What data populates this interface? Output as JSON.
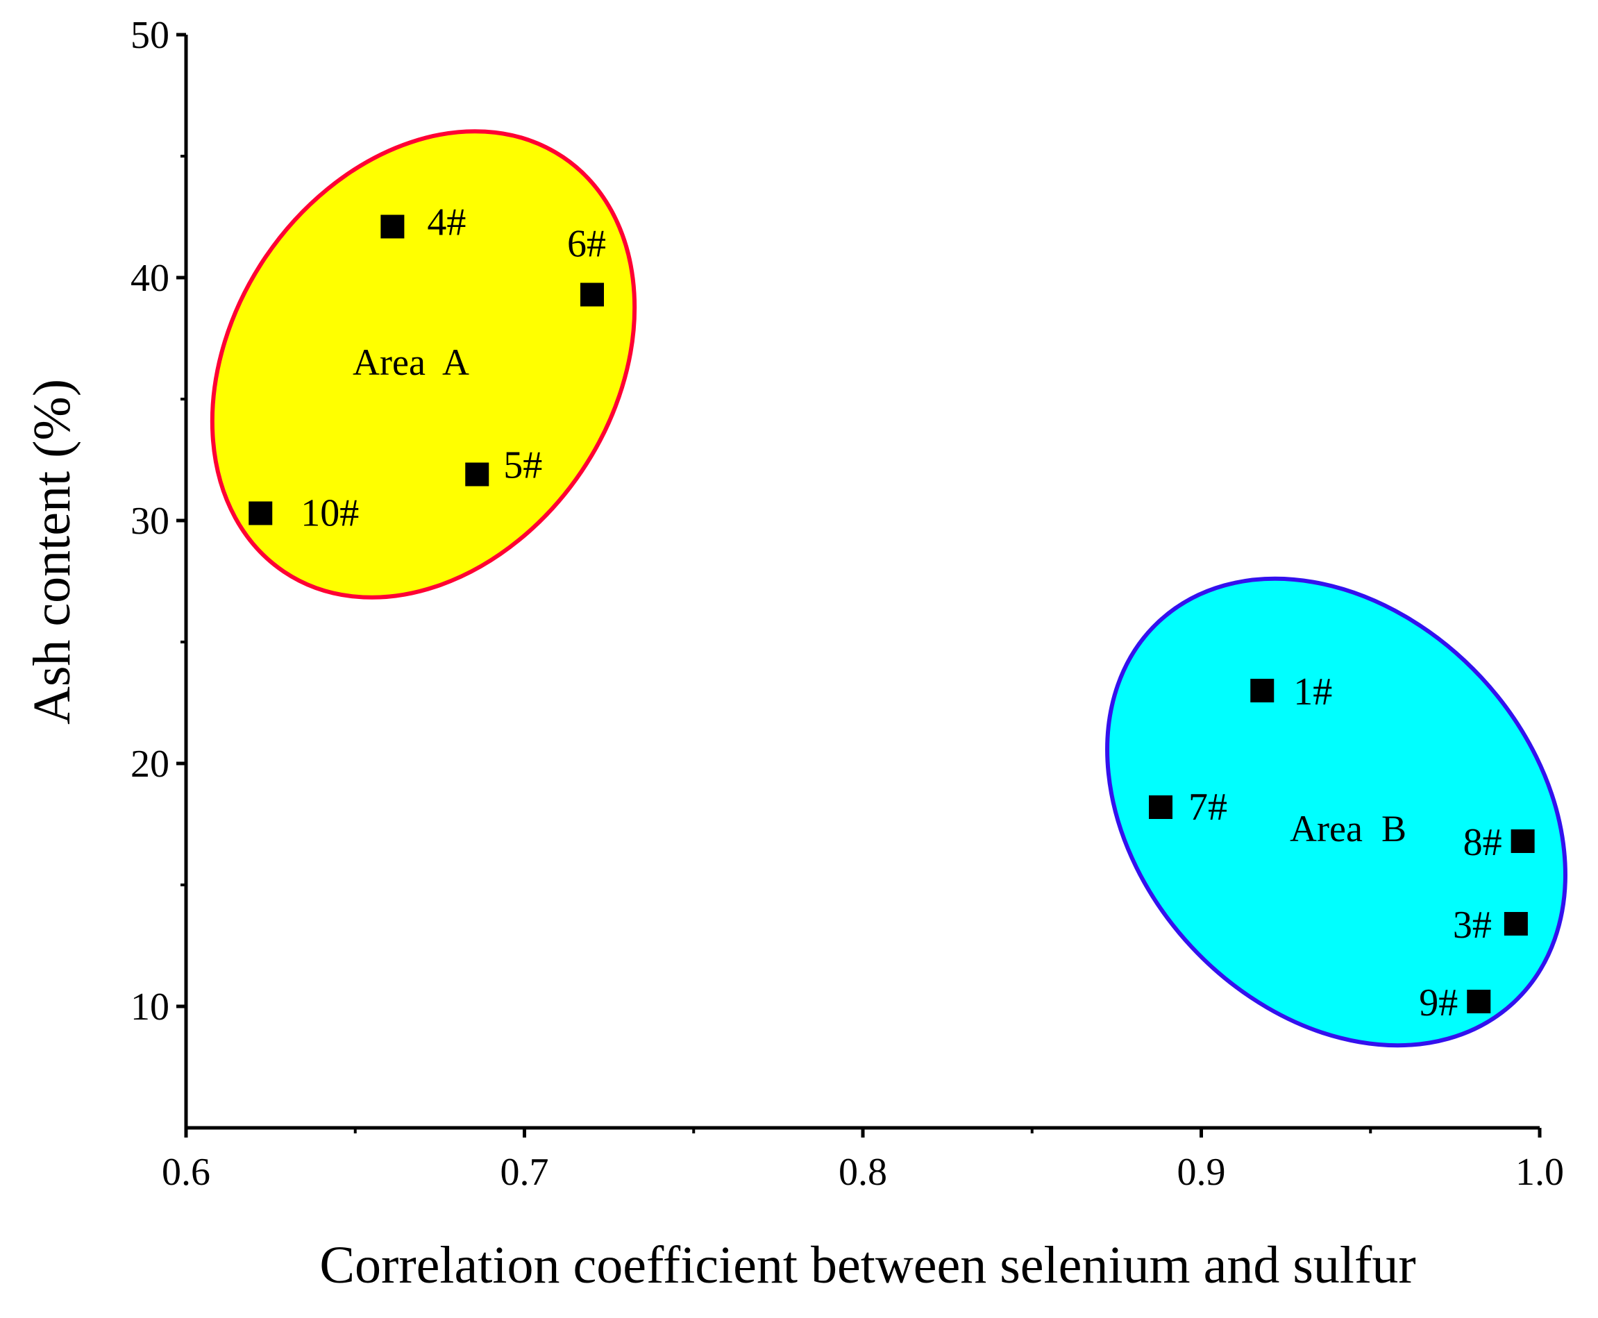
{
  "chart_data": {
    "type": "scatter",
    "title": "",
    "xlabel": "Correlation coefficient between selenium and sulfur",
    "ylabel": "Ash content (%)",
    "xlim": [
      0.6,
      1.0
    ],
    "ylim": [
      5,
      50
    ],
    "x_ticks": [
      0.6,
      0.7,
      0.8,
      0.9,
      1.0
    ],
    "x_tick_labels": [
      "0.6",
      "0.7",
      "0.8",
      "0.9",
      "1.0"
    ],
    "x_minor_ticks": [
      0.65,
      0.75,
      0.85,
      0.95
    ],
    "y_ticks": [
      10,
      20,
      30,
      40,
      50
    ],
    "y_tick_labels": [
      "10",
      "20",
      "30",
      "40",
      "50"
    ],
    "y_minor_ticks": [
      15,
      25,
      35,
      45
    ],
    "grid": false,
    "marker": "square",
    "marker_color": "#000000",
    "points": [
      {
        "label": "1#",
        "x": 0.918,
        "y": 23.0
      },
      {
        "label": "3#",
        "x": 0.993,
        "y": 13.4
      },
      {
        "label": "4#",
        "x": 0.661,
        "y": 42.1
      },
      {
        "label": "5#",
        "x": 0.686,
        "y": 31.9
      },
      {
        "label": "6#",
        "x": 0.72,
        "y": 39.3
      },
      {
        "label": "7#",
        "x": 0.888,
        "y": 18.2
      },
      {
        "label": "8#",
        "x": 0.995,
        "y": 16.8
      },
      {
        "label": "9#",
        "x": 0.982,
        "y": 10.2
      },
      {
        "label": "10#",
        "x": 0.622,
        "y": 30.3
      }
    ],
    "areas": [
      {
        "label": "Area  A",
        "fill": "#ffff00",
        "stroke": "#ff0033",
        "members": [
          "4#",
          "5#",
          "6#",
          "10#"
        ]
      },
      {
        "label": "Area  B",
        "fill": "#00ffff",
        "stroke": "#3311ee",
        "members": [
          "1#",
          "3#",
          "7#",
          "8#",
          "9#"
        ]
      }
    ]
  }
}
